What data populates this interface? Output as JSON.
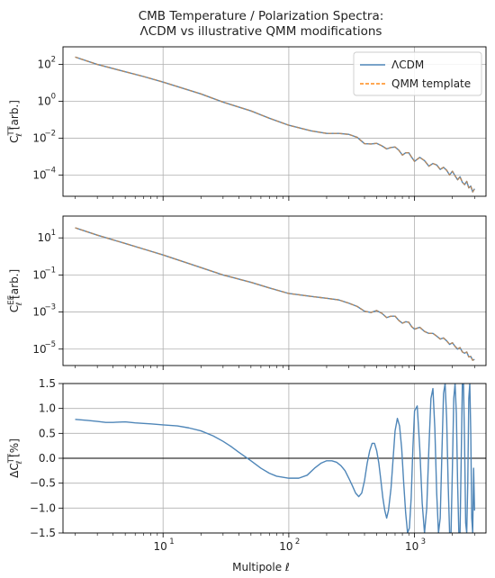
{
  "figure": {
    "title_line1": "CMB Temperature / Polarization Spectra:",
    "title_line2": "ΛCDM vs illustrative QMM modifications",
    "xlabel": "Multipole ℓ",
    "x_tick_labels": [
      "10",
      "10",
      "10"
    ],
    "x_tick_exponents": [
      "1",
      "2",
      "3"
    ]
  },
  "panels": {
    "tt": {
      "ylabel_base": "C",
      "ylabel_sub": "ℓ",
      "ylabel_sup": "TT",
      "ylabel_unit": " [arb.]",
      "tick_bases": [
        "10",
        "10",
        "10",
        "10"
      ],
      "tick_exponents": [
        "2",
        "0",
        "−2",
        "−4"
      ]
    },
    "ee": {
      "ylabel_base": "C",
      "ylabel_sub": "ℓ",
      "ylabel_sup": "EE",
      "ylabel_unit": " [arb.]",
      "tick_bases": [
        "10",
        "10",
        "10",
        "10"
      ],
      "tick_exponents": [
        "1",
        "−1",
        "−3",
        "−5"
      ]
    },
    "diff": {
      "ylabel_base": "ΔC",
      "ylabel_sub": "ℓ",
      "ylabel_sup": "TT",
      "ylabel_unit": " [%]",
      "tick_labels": [
        "1.5",
        "1.0",
        "0.5",
        "0.0",
        "−0.5",
        "−1.0",
        "−1.5"
      ]
    }
  },
  "legend": {
    "items": [
      "ΛCDM",
      "QMM template"
    ],
    "placement": "top-right"
  },
  "colors": {
    "lcdm": "#4f86b8",
    "qmm": "#ff8c1a",
    "overlap": "#b4885f",
    "grid": "#b0b0b0",
    "zero_line": "#000000"
  },
  "chart_data": [
    {
      "type": "line",
      "panel": "tt",
      "xscale": "log",
      "yscale": "log",
      "xlim": [
        1.6,
        3700
      ],
      "ylim": [
        7e-06,
        900
      ],
      "grid": true,
      "legend": "top-right",
      "series": [
        {
          "name": "ΛCDM",
          "style": "solid",
          "x": [
            2,
            3,
            5,
            7,
            10,
            20,
            30,
            50,
            70,
            100,
            150,
            200,
            250,
            300,
            350,
            400,
            450,
            500,
            550,
            600,
            650,
            700,
            750,
            800,
            850,
            900,
            950,
            1000,
            1100,
            1200,
            1300,
            1400,
            1500,
            1600,
            1700,
            1800,
            1900,
            2000,
            2100,
            2200,
            2300,
            2400,
            2500,
            2600,
            2700,
            2800,
            2900,
            3000
          ],
          "y": [
            250,
            100,
            40,
            22,
            11,
            2.5,
            0.9,
            0.3,
            0.12,
            0.05,
            0.025,
            0.018,
            0.018,
            0.016,
            0.011,
            0.005,
            0.0048,
            0.0052,
            0.0038,
            0.0026,
            0.0031,
            0.0033,
            0.0022,
            0.0012,
            0.0016,
            0.0016,
            0.0009,
            0.00055,
            0.0009,
            0.0006,
            0.0003,
            0.00042,
            0.00035,
            0.0002,
            0.00026,
            0.00018,
            0.0001,
            0.00016,
            9e-05,
            5.5e-05,
            8e-05,
            4e-05,
            3e-05,
            4.5e-05,
            2e-05,
            2.5e-05,
            1.2e-05,
            1.8e-05
          ]
        },
        {
          "name": "QMM template",
          "style": "dashed",
          "x": [
            2,
            3,
            5,
            7,
            10,
            20,
            30,
            50,
            70,
            100,
            150,
            200,
            250,
            300,
            350,
            400,
            450,
            500,
            550,
            600,
            650,
            700,
            750,
            800,
            850,
            900,
            950,
            1000,
            1100,
            1200,
            1300,
            1400,
            1500,
            1600,
            1700,
            1800,
            1900,
            2000,
            2100,
            2200,
            2300,
            2400,
            2500,
            2600,
            2700,
            2800,
            2900,
            3000
          ],
          "y": [
            250,
            100,
            40,
            22,
            11,
            2.5,
            0.9,
            0.3,
            0.12,
            0.05,
            0.025,
            0.018,
            0.018,
            0.016,
            0.011,
            0.005,
            0.0048,
            0.0052,
            0.0038,
            0.0026,
            0.0031,
            0.0033,
            0.0022,
            0.0012,
            0.0016,
            0.0016,
            0.0009,
            0.00055,
            0.0009,
            0.0006,
            0.0003,
            0.00042,
            0.00035,
            0.0002,
            0.00026,
            0.00018,
            0.0001,
            0.00016,
            9e-05,
            5.5e-05,
            8e-05,
            4e-05,
            3e-05,
            4.5e-05,
            2e-05,
            2.5e-05,
            1.2e-05,
            1.8e-05
          ]
        }
      ]
    },
    {
      "type": "line",
      "panel": "ee",
      "xscale": "log",
      "yscale": "log",
      "xlim": [
        1.6,
        3700
      ],
      "ylim": [
        1.3e-06,
        150
      ],
      "grid": true,
      "series": [
        {
          "name": "ΛCDM",
          "style": "solid",
          "x": [
            2,
            3,
            5,
            7,
            10,
            20,
            30,
            50,
            70,
            100,
            150,
            200,
            250,
            300,
            350,
            400,
            450,
            500,
            550,
            600,
            650,
            700,
            750,
            800,
            850,
            900,
            950,
            1000,
            1100,
            1200,
            1300,
            1400,
            1500,
            1600,
            1700,
            1800,
            1900,
            2000,
            2100,
            2200,
            2300,
            2400,
            2500,
            2600,
            2700,
            2800,
            2900,
            3000
          ],
          "y": [
            35,
            14,
            5,
            2.5,
            1.2,
            0.25,
            0.1,
            0.04,
            0.02,
            0.01,
            0.007,
            0.0055,
            0.0045,
            0.003,
            0.002,
            0.0011,
            0.00095,
            0.0012,
            0.00085,
            0.0005,
            0.0006,
            0.0006,
            0.00035,
            0.00025,
            0.0003,
            0.00028,
            0.00016,
            0.00012,
            0.00015,
            9e-05,
            7e-05,
            7e-05,
            5e-05,
            3.5e-05,
            4e-05,
            2.8e-05,
            1.8e-05,
            2.2e-05,
            1.4e-05,
            1e-05,
            1.2e-05,
            7e-06,
            6e-06,
            7e-06,
            3.8e-06,
            4e-06,
            2.5e-06,
            2.8e-06
          ]
        },
        {
          "name": "QMM template",
          "style": "dashed",
          "x": [
            2,
            3,
            5,
            7,
            10,
            20,
            30,
            50,
            70,
            100,
            150,
            200,
            250,
            300,
            350,
            400,
            450,
            500,
            550,
            600,
            650,
            700,
            750,
            800,
            850,
            900,
            950,
            1000,
            1100,
            1200,
            1300,
            1400,
            1500,
            1600,
            1700,
            1800,
            1900,
            2000,
            2100,
            2200,
            2300,
            2400,
            2500,
            2600,
            2700,
            2800,
            2900,
            3000
          ],
          "y": [
            35,
            14,
            5,
            2.5,
            1.2,
            0.25,
            0.1,
            0.04,
            0.02,
            0.01,
            0.007,
            0.0055,
            0.0045,
            0.003,
            0.002,
            0.0011,
            0.00095,
            0.0012,
            0.00085,
            0.0005,
            0.0006,
            0.0006,
            0.00035,
            0.00025,
            0.0003,
            0.00028,
            0.00016,
            0.00012,
            0.00015,
            9e-05,
            7e-05,
            7e-05,
            5e-05,
            3.5e-05,
            4e-05,
            2.8e-05,
            1.8e-05,
            2.2e-05,
            1.4e-05,
            1e-05,
            1.2e-05,
            7e-06,
            6e-06,
            7e-06,
            3.8e-06,
            4e-06,
            2.5e-06,
            2.8e-06
          ]
        }
      ]
    },
    {
      "type": "line",
      "panel": "diff",
      "xscale": "log",
      "yscale": "linear",
      "xlim": [
        1.6,
        3700
      ],
      "ylim": [
        -1.5,
        1.5
      ],
      "grid": true,
      "hline": 0,
      "series": [
        {
          "style": "solid",
          "x": [
            2,
            2.5,
            3,
            3.5,
            4,
            5,
            6,
            7,
            8,
            10,
            13,
            16,
            20,
            25,
            30,
            35,
            40,
            50,
            60,
            70,
            80,
            100,
            120,
            140,
            160,
            180,
            200,
            220,
            240,
            260,
            280,
            300,
            320,
            340,
            360,
            380,
            400,
            420,
            440,
            460,
            480,
            500,
            520,
            540,
            560,
            580,
            600,
            620,
            650,
            680,
            700,
            730,
            760,
            790,
            820,
            850,
            880,
            910,
            940,
            970,
            1000,
            1050,
            1100,
            1150,
            1200,
            1250,
            1300,
            1350,
            1400,
            1450,
            1500,
            1550,
            1600,
            1650,
            1700,
            1750,
            1800,
            1850,
            1900,
            1950,
            2000,
            2050,
            2100,
            2150,
            2200,
            2250,
            2300,
            2350,
            2400,
            2450,
            2500,
            2550,
            2600,
            2650,
            2700,
            2750,
            2800,
            2850,
            2900,
            2950,
            3000
          ],
          "y": [
            0.78,
            0.76,
            0.74,
            0.72,
            0.72,
            0.73,
            0.71,
            0.7,
            0.69,
            0.67,
            0.65,
            0.61,
            0.55,
            0.45,
            0.34,
            0.23,
            0.12,
            -0.05,
            -0.2,
            -0.3,
            -0.36,
            -0.4,
            -0.4,
            -0.34,
            -0.2,
            -0.1,
            -0.05,
            -0.05,
            -0.08,
            -0.15,
            -0.25,
            -0.4,
            -0.55,
            -0.7,
            -0.77,
            -0.7,
            -0.45,
            -0.1,
            0.15,
            0.3,
            0.3,
            0.15,
            -0.1,
            -0.45,
            -0.8,
            -1.05,
            -1.2,
            -1.05,
            -0.6,
            0.1,
            0.55,
            0.8,
            0.65,
            0.2,
            -0.5,
            -1.1,
            -1.5,
            -1.4,
            -0.8,
            0.2,
            0.95,
            1.05,
            0.2,
            -0.9,
            -1.5,
            -1.0,
            0.2,
            1.2,
            1.4,
            0.6,
            -0.7,
            -1.5,
            -1.2,
            0.1,
            1.3,
            1.5,
            0.8,
            -0.5,
            -1.5,
            -1.5,
            -0.2,
            1.2,
            1.5,
            0.9,
            -0.5,
            -1.5,
            -1.5,
            0.0,
            1.5,
            1.5,
            0.3,
            -1.3,
            -1.5,
            -0.5,
            1.2,
            1.5,
            0.5,
            -1.2,
            -1.5,
            -0.2,
            -1.05
          ]
        }
      ]
    }
  ]
}
